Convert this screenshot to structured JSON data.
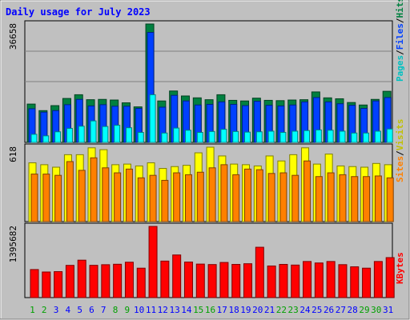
{
  "chart_data": [
    {
      "type": "bar",
      "title": "Daily usage for July 2023",
      "ymax_label": "36658",
      "categories": [
        "1",
        "2",
        "3",
        "4",
        "5",
        "6",
        "7",
        "8",
        "9",
        "10",
        "11",
        "12",
        "13",
        "14",
        "15",
        "16",
        "17",
        "18",
        "19",
        "20",
        "21",
        "22",
        "23",
        "24",
        "25",
        "26",
        "27",
        "28",
        "29",
        "30",
        "31"
      ],
      "weekend_days": [
        "1",
        "2",
        "8",
        "9",
        "15",
        "16",
        "22",
        "23",
        "29",
        "30"
      ],
      "series": [
        {
          "name": "Hits",
          "color": "#008040",
          "values": [
            12300,
            10200,
            11800,
            14100,
            15300,
            13700,
            13800,
            13600,
            12700,
            11400,
            38000,
            13300,
            16500,
            14900,
            14300,
            13700,
            15300,
            13500,
            13300,
            14200,
            13500,
            13400,
            13600,
            13700,
            16200,
            14300,
            14000,
            12800,
            12000,
            13800,
            16400
          ]
        },
        {
          "name": "Files",
          "color": "#0040ff",
          "values": [
            10800,
            9700,
            10200,
            12100,
            13800,
            11700,
            12100,
            11600,
            11600,
            10900,
            35300,
            11300,
            15100,
            13300,
            12000,
            12200,
            13000,
            12200,
            11800,
            13200,
            11900,
            11700,
            12000,
            13000,
            14400,
            13000,
            12400,
            11900,
            10900,
            13300,
            14400
          ]
        },
        {
          "name": "Pages",
          "color": "#00ffff",
          "values": [
            2600,
            2100,
            3400,
            4500,
            5200,
            6900,
            5100,
            5500,
            4700,
            3200,
            15300,
            3000,
            4600,
            3900,
            3200,
            3500,
            4200,
            3500,
            3300,
            3400,
            3600,
            3200,
            3600,
            3800,
            4000,
            3900,
            3600,
            3000,
            3000,
            3600,
            4300
          ]
        }
      ]
    },
    {
      "type": "bar",
      "ymax_label": "618",
      "categories": [
        "1",
        "2",
        "3",
        "4",
        "5",
        "6",
        "7",
        "8",
        "9",
        "10",
        "11",
        "12",
        "13",
        "14",
        "15",
        "16",
        "17",
        "18",
        "19",
        "20",
        "21",
        "22",
        "23",
        "24",
        "25",
        "26",
        "27",
        "28",
        "29",
        "30",
        "31"
      ],
      "series": [
        {
          "name": "Visits",
          "color": "#ffff00",
          "values": [
            470,
            455,
            435,
            535,
            535,
            590,
            575,
            455,
            460,
            445,
            470,
            425,
            440,
            450,
            550,
            595,
            525,
            460,
            455,
            445,
            525,
            485,
            535,
            590,
            460,
            540,
            445,
            440,
            435,
            465,
            455
          ]
        },
        {
          "name": "Sites",
          "color": "#ff8000",
          "values": [
            380,
            380,
            370,
            480,
            410,
            510,
            430,
            390,
            420,
            350,
            370,
            330,
            390,
            375,
            395,
            430,
            455,
            375,
            420,
            415,
            385,
            390,
            370,
            485,
            360,
            390,
            375,
            360,
            360,
            365,
            350
          ]
        }
      ]
    },
    {
      "type": "bar",
      "ymax_label": "1395682",
      "categories": [
        "1",
        "2",
        "3",
        "4",
        "5",
        "6",
        "7",
        "8",
        "9",
        "10",
        "11",
        "12",
        "13",
        "14",
        "15",
        "16",
        "17",
        "18",
        "19",
        "20",
        "21",
        "22",
        "23",
        "24",
        "25",
        "26",
        "27",
        "28",
        "29",
        "30",
        "31"
      ],
      "series": [
        {
          "name": "KBytes",
          "color": "#ff0000",
          "values": [
            550000,
            502000,
            509000,
            632000,
            734000,
            633000,
            645000,
            654000,
            694000,
            577000,
            1395682,
            716000,
            836000,
            697000,
            657000,
            648000,
            689000,
            651000,
            664000,
            987000,
            620000,
            651000,
            638000,
            708000,
            679000,
            708000,
            646000,
            604000,
            577000,
            708000,
            784000
          ]
        }
      ]
    }
  ],
  "legend": {
    "panel1": [
      "Pages",
      "/",
      "Files",
      "/",
      "Hits"
    ],
    "panel2": [
      "Sites",
      "/",
      "Visits"
    ],
    "panel3": [
      "KBytes"
    ],
    "colors": {
      "Pages": "#00c0c0",
      "Files": "#0040ff",
      "Hits": "#008040",
      "Sites": "#ff8000",
      "Visits": "#c0c000",
      "KBytes": "#ff0000",
      "/": "#000000"
    }
  },
  "colors": {
    "background": "#c0c0c0",
    "title": "#0000ff",
    "weekday_label": "#0000ff",
    "weekend_label": "#00a000"
  }
}
